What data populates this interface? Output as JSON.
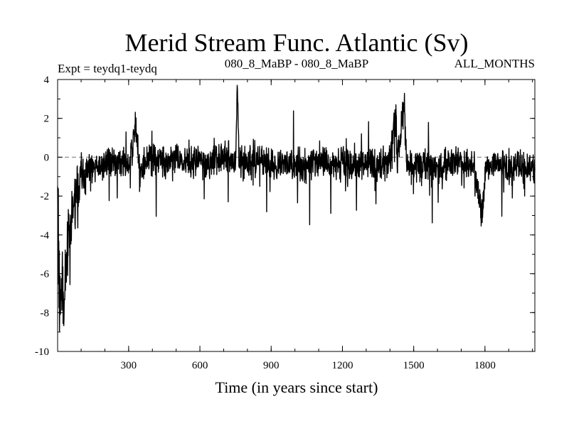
{
  "chart_data": {
    "type": "line",
    "title": "Merid Stream Func. Atlantic (Sv)",
    "subtitle_left": "Expt = teydq1-teydq",
    "subtitle_center": "080_8_MaBP - 080_8_MaBP",
    "subtitle_right": "ALL_MONTHS",
    "xlabel": "Time (in years since start)",
    "ylabel": "",
    "xlim": [
      1,
      2010
    ],
    "ylim": [
      -10,
      4
    ],
    "x_ticks": [
      300,
      600,
      900,
      1200,
      1500,
      1800
    ],
    "x_tick_labels": [
      "300",
      "600",
      "900",
      "1200",
      "1500",
      "1800"
    ],
    "y_ticks": [
      -10,
      -8,
      -6,
      -4,
      -2,
      0,
      2,
      4
    ],
    "y_tick_labels": [
      "-10",
      "-8",
      "-6",
      "-4",
      "-2",
      "0",
      "2",
      "4"
    ],
    "zero_line": "dashed",
    "grid": false,
    "series": [
      {
        "name": "Merid Stream Func. Atlantic",
        "x": [
          1,
          10,
          20,
          30,
          40,
          50,
          60,
          70,
          80,
          90,
          100,
          110,
          120,
          130,
          150,
          180,
          220,
          260,
          300,
          330,
          350,
          380,
          400,
          430,
          460,
          500,
          540,
          580,
          600,
          620,
          650,
          700,
          750,
          757,
          765,
          800,
          850,
          900,
          950,
          1000,
          1050,
          1100,
          1150,
          1200,
          1250,
          1300,
          1350,
          1400,
          1425,
          1430,
          1460,
          1470,
          1500,
          1550,
          1600,
          1650,
          1700,
          1750,
          1790,
          1800,
          1850,
          1900,
          1950,
          2010
        ],
        "values": [
          -1.5,
          -7.8,
          -6.0,
          -7.3,
          -5.2,
          -3.5,
          -3.0,
          -2.5,
          -1.8,
          -1.5,
          -0.5,
          -1.2,
          -0.3,
          -0.6,
          -0.5,
          -0.4,
          -0.2,
          -0.3,
          -0.4,
          1.5,
          -1.0,
          0.2,
          -0.3,
          0.1,
          -0.5,
          0.0,
          -0.3,
          -0.4,
          0.2,
          -0.5,
          -0.2,
          0.1,
          -0.4,
          3.7,
          -0.2,
          -0.3,
          -0.1,
          -0.4,
          -0.2,
          -0.3,
          -0.5,
          -0.2,
          -0.4,
          -0.3,
          -0.5,
          -0.2,
          -0.4,
          -0.3,
          2.7,
          -0.2,
          2.7,
          -0.3,
          -0.4,
          -0.3,
          -0.5,
          -0.3,
          -0.4,
          -0.3,
          -3.1,
          -0.5,
          -0.3,
          -0.6,
          -0.4,
          -0.7
        ]
      }
    ],
    "noise": {
      "amplitude": 1.0,
      "seed": 7,
      "early_extra": 1.6,
      "early_years": 120
    }
  }
}
